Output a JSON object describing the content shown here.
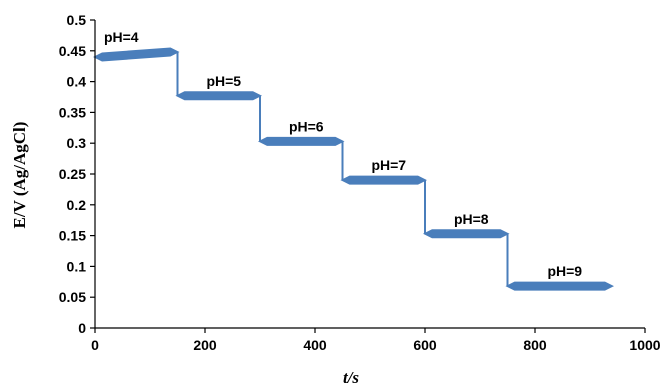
{
  "chart_data": {
    "type": "line",
    "xlabel": "t/s",
    "ylabel": "E/V (Ag/AgCl)",
    "xlim": [
      0,
      1000
    ],
    "ylim": [
      0,
      0.5
    ],
    "xticks": [
      0,
      200,
      400,
      600,
      800,
      1000
    ],
    "xtick_labels": [
      "0",
      "200",
      "400",
      "600",
      "800",
      "1000"
    ],
    "yticks": [
      0,
      0.05,
      0.1,
      0.15,
      0.2,
      0.25,
      0.3,
      0.35,
      0.4,
      0.45,
      0.5
    ],
    "ytick_labels": [
      "0",
      "0.05",
      "0.1",
      "0.15",
      "0.2",
      "0.25",
      "0.3",
      "0.35",
      "0.4",
      "0.45",
      "0.5"
    ],
    "grid": false,
    "legend": "none",
    "series_color": "#4a7ebb",
    "segments": [
      {
        "label": "pH=4",
        "t_start": 0,
        "t_end": 150,
        "E_start": 0.44,
        "E_end": 0.448
      },
      {
        "label": "pH=5",
        "t_start": 150,
        "t_end": 300,
        "E_start": 0.377,
        "E_end": 0.377
      },
      {
        "label": "pH=6",
        "t_start": 300,
        "t_end": 450,
        "E_start": 0.303,
        "E_end": 0.303
      },
      {
        "label": "pH=7",
        "t_start": 450,
        "t_end": 600,
        "E_start": 0.24,
        "E_end": 0.24
      },
      {
        "label": "pH=8",
        "t_start": 600,
        "t_end": 750,
        "E_start": 0.153,
        "E_end": 0.153
      },
      {
        "label": "pH=9",
        "t_start": 750,
        "t_end": 940,
        "E_start": 0.068,
        "E_end": 0.068
      }
    ]
  }
}
